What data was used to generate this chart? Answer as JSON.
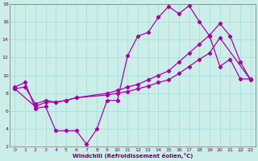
{
  "xlabel": "Windchill (Refroidissement éolien,°C)",
  "background_color": "#cceee8",
  "grid_color": "#aadddd",
  "line_color": "#aa00aa",
  "xlim": [
    -0.5,
    23.5
  ],
  "ylim": [
    2,
    18
  ],
  "xticks": [
    0,
    1,
    2,
    3,
    4,
    5,
    6,
    7,
    8,
    9,
    10,
    11,
    12,
    13,
    14,
    15,
    16,
    17,
    18,
    19,
    20,
    21,
    22,
    23
  ],
  "yticks": [
    2,
    4,
    6,
    8,
    10,
    12,
    14,
    16,
    18
  ],
  "line1_x": [
    0,
    1,
    2,
    3,
    4,
    5,
    6,
    7,
    8,
    9,
    10,
    11,
    12,
    13,
    14,
    15,
    16,
    17,
    18,
    19,
    20,
    21,
    22,
    23
  ],
  "line1_y": [
    8.7,
    9.2,
    6.3,
    6.5,
    3.8,
    3.8,
    3.8,
    2.3,
    4.0,
    7.2,
    7.2,
    12.2,
    14.4,
    14.8,
    16.5,
    17.7,
    16.9,
    17.8,
    16.0,
    14.4,
    11.0,
    11.8,
    9.6,
    9.6
  ],
  "line2_x": [
    0,
    1,
    2,
    3,
    4,
    5,
    6,
    9,
    10,
    11,
    12,
    13,
    14,
    15,
    16,
    17,
    18,
    19,
    20,
    23
  ],
  "line2_y": [
    8.5,
    8.7,
    6.8,
    7.2,
    7.0,
    7.2,
    7.5,
    7.8,
    8.0,
    8.2,
    8.5,
    8.8,
    9.2,
    9.5,
    10.2,
    11.0,
    11.8,
    12.5,
    14.2,
    9.5
  ],
  "line3_x": [
    0,
    2,
    3,
    4,
    5,
    6,
    9,
    10,
    11,
    12,
    13,
    14,
    15,
    16,
    17,
    18,
    19,
    20,
    21,
    22,
    23
  ],
  "line3_y": [
    8.5,
    6.5,
    7.0,
    7.0,
    7.2,
    7.5,
    8.0,
    8.3,
    8.7,
    9.0,
    9.5,
    10.0,
    10.5,
    11.5,
    12.5,
    13.5,
    14.5,
    15.8,
    14.4,
    11.5,
    9.5
  ]
}
